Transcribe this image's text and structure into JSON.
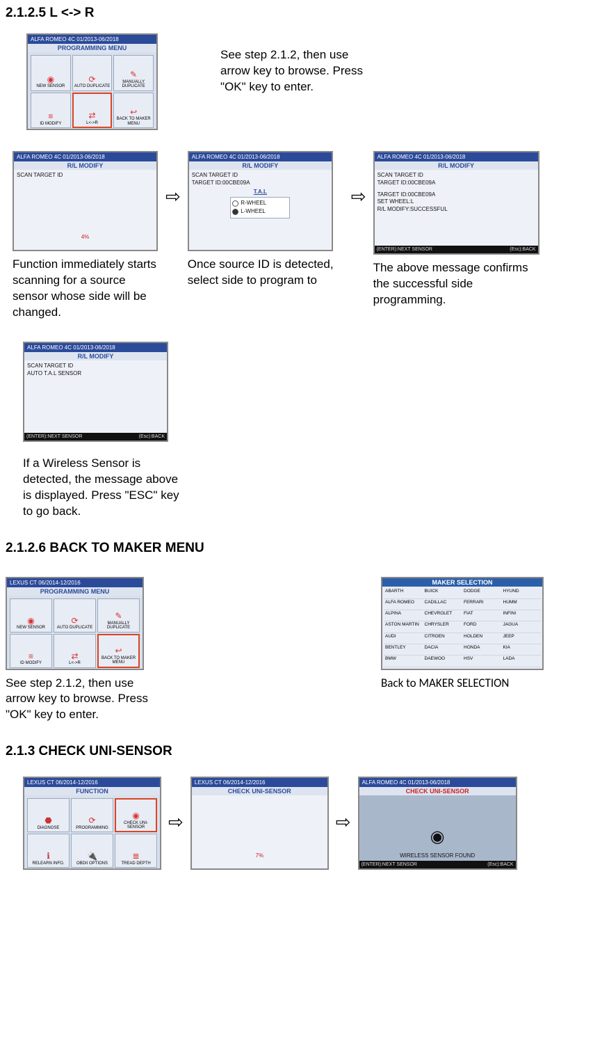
{
  "s1": {
    "heading": "2.1.2.5 L <-> R",
    "devA": {
      "title_left": "ALFA ROMEO  4C  01/2013-06/2018",
      "sub": "PROGRAMMING MENU",
      "cells": [
        "NEW SENSOR",
        "AUTO DUPLICATE",
        "MANUALLY DUPLICATE",
        "ID MODIFY",
        "L<->R",
        "BACK TO MAKER MENU"
      ]
    },
    "captionA": "See step 2.1.2, then use arrow key to browse. Press \"OK\" key to enter.",
    "devB": {
      "title_left": "ALFA ROMEO  4C  01/2013-06/2018",
      "sub": "R/L MODIFY",
      "line1": "SCAN TARGET ID",
      "pct": "4%"
    },
    "captionB": "Function immediately starts scanning for a source sensor whose side will be changed.",
    "devC": {
      "title_left": "ALFA ROMEO  4C  01/2013-06/2018",
      "sub": "R/L MODIFY",
      "line1": "SCAN TARGET ID",
      "line2": "TARGET ID:00CBE09A",
      "tal": "T.A.L",
      "opt1": "R-WHEEL",
      "opt2": "L-WHEEL"
    },
    "captionC": "Once source ID is detected, select side to program to",
    "devD": {
      "title_left": "ALFA ROMEO  4C  01/2013-06/2018",
      "sub": "R/L MODIFY",
      "line1": "SCAN TARGET ID",
      "line2": "TARGET ID:00CBE09A",
      "line3": "TARGET ID:00CBE09A",
      "line4": "SET WHEEL:L",
      "line5": "R/L MODIFY:SUCCESSFUL",
      "foot_l": "(ENTER):NEXT SENSOR",
      "foot_r": "(Esc):BACK"
    },
    "captionD": "The above message confirms the successful side programming.",
    "devE": {
      "title_left": "ALFA ROMEO  4C  01/2013-06/2018",
      "sub": "R/L MODIFY",
      "line1": "SCAN TARGET ID",
      "line2": "AUTO T.A.L SENSOR",
      "foot_l": "(ENTER):NEXT SENSOR",
      "foot_r": "(Esc):BACK"
    },
    "captionE": "If a Wireless Sensor is detected, the message above is displayed. Press \"ESC\" key to go back."
  },
  "s2": {
    "heading": "2.1.2.6 BACK TO MAKER MENU",
    "devA": {
      "title_left": "LEXUS  CT  06/2014-12/2016",
      "sub": "PROGRAMMING MENU",
      "cells": [
        "NEW SENSOR",
        "AUTO DUPLICATE",
        "MANUALLY DUPLICATE",
        "ID MODIFY",
        "L<->R",
        "BACK TO MAKER MENU"
      ]
    },
    "captionA": "See step 2.1.2, then use arrow key to browse. Press \"OK\" key to enter.",
    "devB": {
      "sub": "MAKER SELECTION",
      "rows": [
        [
          "ABARTH",
          "BUICK",
          "DODGE",
          "HYUND"
        ],
        [
          "ALFA ROMEO",
          "CADILLAC",
          "FERRARI",
          "HUMM"
        ],
        [
          "ALPINA",
          "CHEVROLET",
          "FIAT",
          "INFINI"
        ],
        [
          "ASTON MARTIN",
          "CHRYSLER",
          "FORD",
          "JAGUA"
        ],
        [
          "AUDI",
          "CITROEN",
          "HOLDEN",
          "JEEP"
        ],
        [
          "BENTLEY",
          "DACIA",
          "HONDA",
          "KIA"
        ],
        [
          "BMW",
          "DAEWOO",
          "HSV",
          "LADA"
        ]
      ]
    },
    "captionB": "Back to MAKER SELECTION"
  },
  "s3": {
    "heading": "2.1.3 CHECK UNI-SENSOR",
    "devA": {
      "title_left": "LEXUS  CT  06/2014-12/2016",
      "sub": "FUNCTION",
      "cells": [
        "DIAGNOSE",
        "PROGRAMMING",
        "CHECK UNI-SENSOR",
        "RELEARN INFO.",
        "OBDII OPTIONS",
        "TREAD DEPTH"
      ]
    },
    "devB": {
      "title_left": "LEXUS  CT  06/2014-12/2016",
      "sub": "CHECK UNI-SENSOR",
      "pct": "7%"
    },
    "devC": {
      "title_left": "ALFA ROMEO  4C  01/2013-06/2018",
      "sub": "CHECK UNI-SENSOR",
      "line1": "WIRELESS SENSOR FOUND",
      "foot_l": "(ENTER):NEXT SENSOR",
      "foot_r": "(Esc):BACK"
    }
  }
}
